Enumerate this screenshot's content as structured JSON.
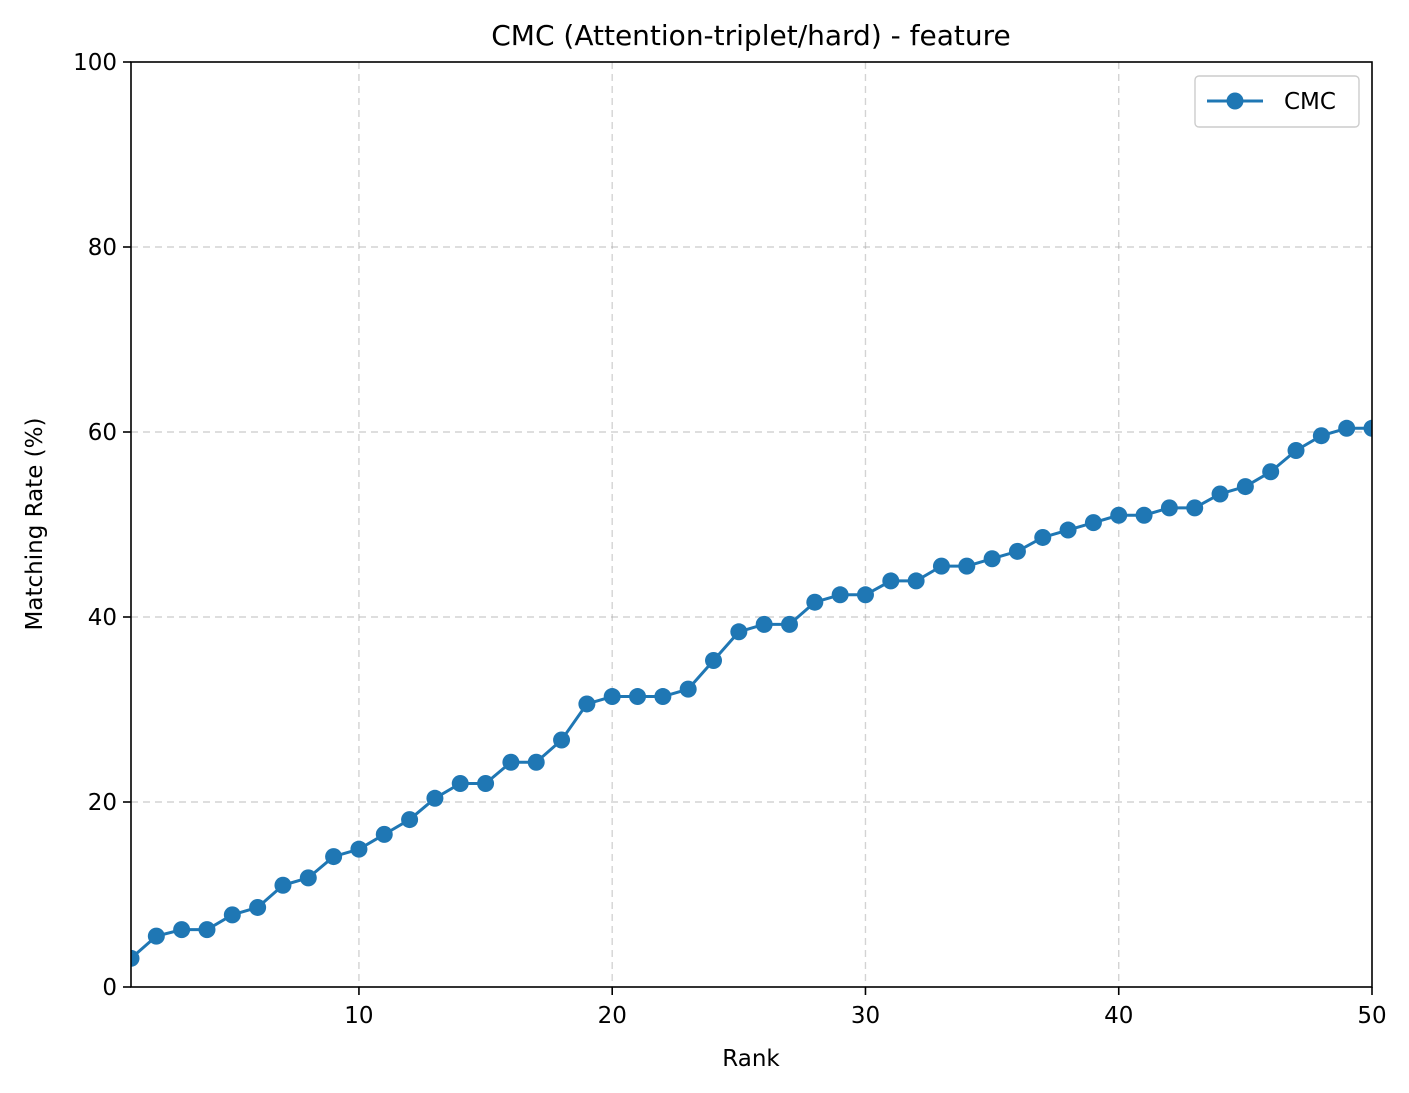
{
  "chart_data": {
    "type": "line",
    "title": "CMC (Attention-triplet/hard) - feature",
    "xlabel": "Rank",
    "ylabel": "Matching Rate (%)",
    "xlim": [
      1,
      50
    ],
    "ylim": [
      0,
      100
    ],
    "x_ticks": [
      10,
      20,
      30,
      40,
      50
    ],
    "y_ticks": [
      0,
      20,
      40,
      60,
      80,
      100
    ],
    "grid": true,
    "legend_position": "top-right",
    "colors": {
      "series": "#1f77b4"
    },
    "x": [
      1,
      2,
      3,
      4,
      5,
      6,
      7,
      8,
      9,
      10,
      11,
      12,
      13,
      14,
      15,
      16,
      17,
      18,
      19,
      20,
      21,
      22,
      23,
      24,
      25,
      26,
      27,
      28,
      29,
      30,
      31,
      32,
      33,
      34,
      35,
      36,
      37,
      38,
      39,
      40,
      41,
      42,
      43,
      44,
      45,
      46,
      47,
      48,
      49,
      50
    ],
    "series": [
      {
        "name": "CMC",
        "marker": "circle",
        "values": [
          3.1,
          5.5,
          6.2,
          6.2,
          7.8,
          8.6,
          11.0,
          11.8,
          14.1,
          14.9,
          16.5,
          18.1,
          20.4,
          22.0,
          22.0,
          24.3,
          24.3,
          26.7,
          30.6,
          31.4,
          31.4,
          31.4,
          32.2,
          35.3,
          38.4,
          39.2,
          39.2,
          41.6,
          42.4,
          42.4,
          43.9,
          43.9,
          45.5,
          45.5,
          46.3,
          47.1,
          48.6,
          49.4,
          50.2,
          51.0,
          51.0,
          51.8,
          51.8,
          53.3,
          54.1,
          55.7,
          58.0,
          59.6,
          60.4,
          60.4
        ]
      }
    ]
  }
}
